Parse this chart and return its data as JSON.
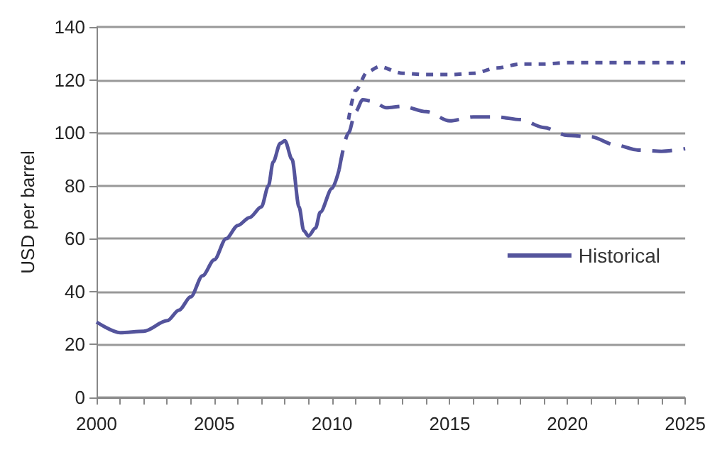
{
  "chart_data": {
    "type": "line",
    "ylabel": "USD per barrel",
    "xlim": [
      2000,
      2025
    ],
    "xticks": [
      2000,
      2005,
      2010,
      2015,
      2020,
      2025
    ],
    "ylim": [
      0,
      140
    ],
    "yticks": [
      0,
      20,
      40,
      60,
      80,
      100,
      120,
      140
    ],
    "grid": "y",
    "legend": "bottom right",
    "marker": "none",
    "series": [
      {
        "name": "Historical",
        "color": "#54549c",
        "line_style": "solid",
        "x": [
          2000,
          2001,
          2002,
          2003,
          2003.5,
          2004,
          2004.5,
          2005,
          2005.5,
          2006,
          2006.5,
          2007,
          2007.3,
          2007.5,
          2007.8,
          2008,
          2008.3,
          2008.6,
          2008.8,
          2009,
          2009.3,
          2009.5,
          2010,
          2010.3
        ],
        "values": [
          28.5,
          24.5,
          25,
          29,
          33,
          38,
          46,
          52,
          60,
          65,
          68,
          72,
          80,
          89,
          96,
          97,
          90,
          72,
          63,
          61,
          64,
          70,
          79,
          86
        ]
      },
      {
        "color": "#54549c",
        "line_style": "dashed",
        "x": [
          2010.3,
          2010.7,
          2011,
          2011.3,
          2011.7,
          2012.3,
          2013,
          2014,
          2015,
          2016,
          2017,
          2018,
          2019,
          2020,
          2021,
          2022,
          2023,
          2024,
          2025
        ],
        "values": [
          86,
          100,
          108,
          112.5,
          112,
          109.5,
          110,
          108,
          104.5,
          106,
          106,
          105,
          102,
          99,
          98.5,
          95.5,
          93.5,
          93,
          94
        ]
      },
      {
        "color": "#54549c",
        "line_style": "dotted",
        "x": [
          2010.7,
          2011,
          2011.5,
          2012,
          2013,
          2014,
          2015,
          2016,
          2017,
          2018,
          2019,
          2020,
          2025
        ],
        "values": [
          105,
          116,
          123,
          125,
          122.5,
          122,
          122,
          122.5,
          124.5,
          126,
          126,
          126.5,
          126.5
        ]
      }
    ]
  }
}
